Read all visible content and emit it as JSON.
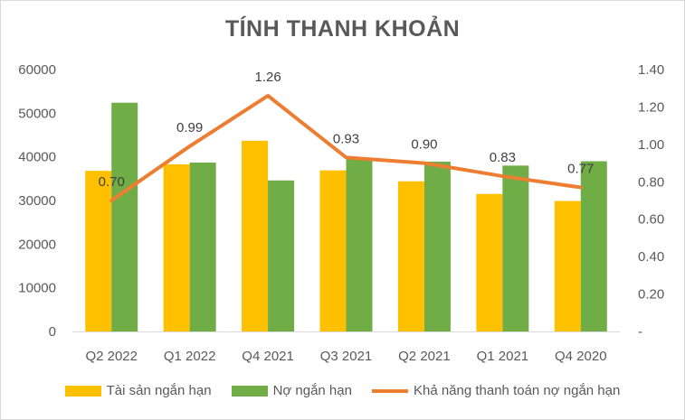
{
  "chart_data": {
    "type": "bar",
    "title": "TÍNH THANH KHOẢN",
    "categories": [
      "Q2 2022",
      "Q1 2022",
      "Q4 2021",
      "Q3 2021",
      "Q2 2021",
      "Q1 2021",
      "Q4 2020"
    ],
    "series": [
      {
        "name": "Tài sản ngắn hạn",
        "kind": "bar",
        "axis": "left",
        "color": "#ffc000",
        "values": [
          36800,
          38300,
          43700,
          36900,
          34400,
          31500,
          29900
        ]
      },
      {
        "name": "Nợ ngắn hạn",
        "kind": "bar",
        "axis": "left",
        "color": "#70ad47",
        "values": [
          52400,
          38700,
          34600,
          39600,
          38900,
          38000,
          39000
        ]
      },
      {
        "name": "Khả năng thanh toán nợ ngắn hạn",
        "kind": "line",
        "axis": "right",
        "color": "#ed7d31",
        "values": [
          0.7,
          0.99,
          1.26,
          0.93,
          0.9,
          0.83,
          0.77
        ],
        "labels": [
          "0.70",
          "0.99",
          "1.26",
          "0.93",
          "0.90",
          "0.83",
          "0.77"
        ]
      }
    ],
    "y_left": {
      "min": 0,
      "max": 60000,
      "ticks": [
        "0",
        "10000",
        "20000",
        "30000",
        "40000",
        "50000",
        "60000"
      ]
    },
    "y_right": {
      "min": 0,
      "max": 1.4,
      "ticks": [
        "-",
        "0.20",
        "0.40",
        "0.60",
        "0.80",
        "1.00",
        "1.20",
        "1.40"
      ]
    },
    "grid": false,
    "legend_position": "bottom"
  }
}
